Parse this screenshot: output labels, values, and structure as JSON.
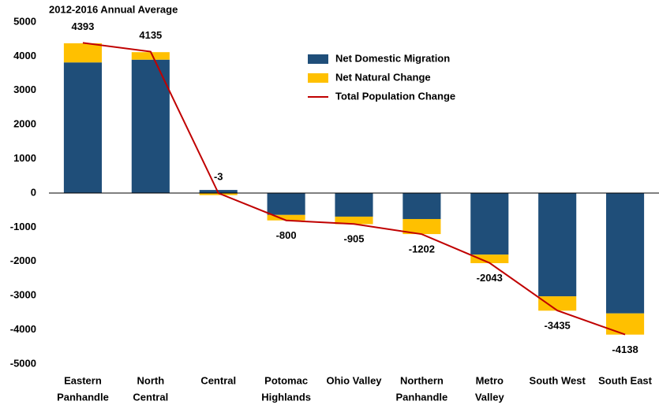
{
  "chart_data": {
    "type": "stacked-bar-line",
    "title": "2012-2016 Annual Average",
    "categories": [
      [
        "Eastern",
        "Panhandle"
      ],
      [
        "North",
        "Central"
      ],
      [
        "Central"
      ],
      [
        "Potomac",
        "Highlands"
      ],
      [
        "Ohio Valley"
      ],
      [
        "Northern",
        "Panhandle"
      ],
      [
        "Metro",
        "Valley"
      ],
      [
        "South West"
      ],
      [
        "South East"
      ]
    ],
    "series": [
      {
        "name": "Net Domestic Migration",
        "color": "#1f4e79",
        "kind": "bar",
        "values": [
          3820,
          3900,
          90,
          -640,
          -690,
          -760,
          -1800,
          -3020,
          -3520
        ]
      },
      {
        "name": "Net Natural Change",
        "color": "#ffc000",
        "kind": "bar",
        "values": [
          560,
          220,
          -60,
          -160,
          -220,
          -440,
          -250,
          -420,
          -620
        ]
      },
      {
        "name": "Total Population Change",
        "color": "#c00000",
        "kind": "line",
        "values": [
          4393,
          4135,
          -3,
          -800,
          -905,
          -1202,
          -2043,
          -3435,
          -4138
        ]
      }
    ],
    "ylim": [
      -5000,
      5000
    ],
    "yticks": [
      -5000,
      -4000,
      -3000,
      -2000,
      -1000,
      0,
      1000,
      2000,
      3000,
      4000,
      5000
    ],
    "grid": false
  }
}
